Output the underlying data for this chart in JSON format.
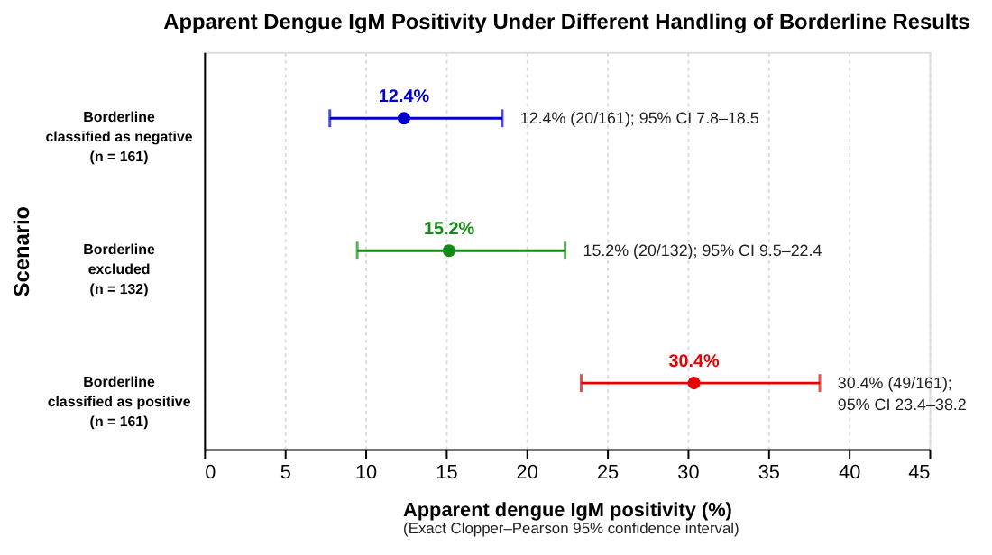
{
  "chart_data": {
    "type": "scatter",
    "orientation": "horizontal",
    "title": "Apparent Dengue IgM Positivity Under Different Handling of Borderline Results",
    "xlabel": "Apparent dengue IgM positivity (%)",
    "ylabel": "Scenario",
    "categories": [
      "Borderline\nclassified as negative\n(n = 161)",
      "Borderline\nexcluded\n(n = 132)",
      "Borderline\nclassified as positive\n(n = 161)"
    ],
    "values": [
      12.4,
      15.2,
      30.4
    ],
    "errors": [
      [
        7.8,
        18.5
      ],
      [
        9.5,
        22.4
      ],
      [
        23.4,
        38.2
      ]
    ],
    "colors": [
      "#0000cc",
      "#168a16",
      "#e60000"
    ],
    "value_labels": [
      "12.4%",
      "15.2%",
      "30.4%"
    ],
    "xlim": [
      0,
      45
    ],
    "xticks": [
      0,
      5,
      10,
      15,
      20,
      25,
      30,
      35,
      40,
      45
    ],
    "grid": "x",
    "marker": "circle",
    "annotations": [
      "12.4% (20/161); 95% CI 7.8–18.5",
      "15.2% (20/132); 95% CI 9.5–22.4",
      "30.4% (49/161);\n95% CI 23.4–38.2",
      "(Exact Clopper–Pearson 95% confidence interval)"
    ]
  }
}
